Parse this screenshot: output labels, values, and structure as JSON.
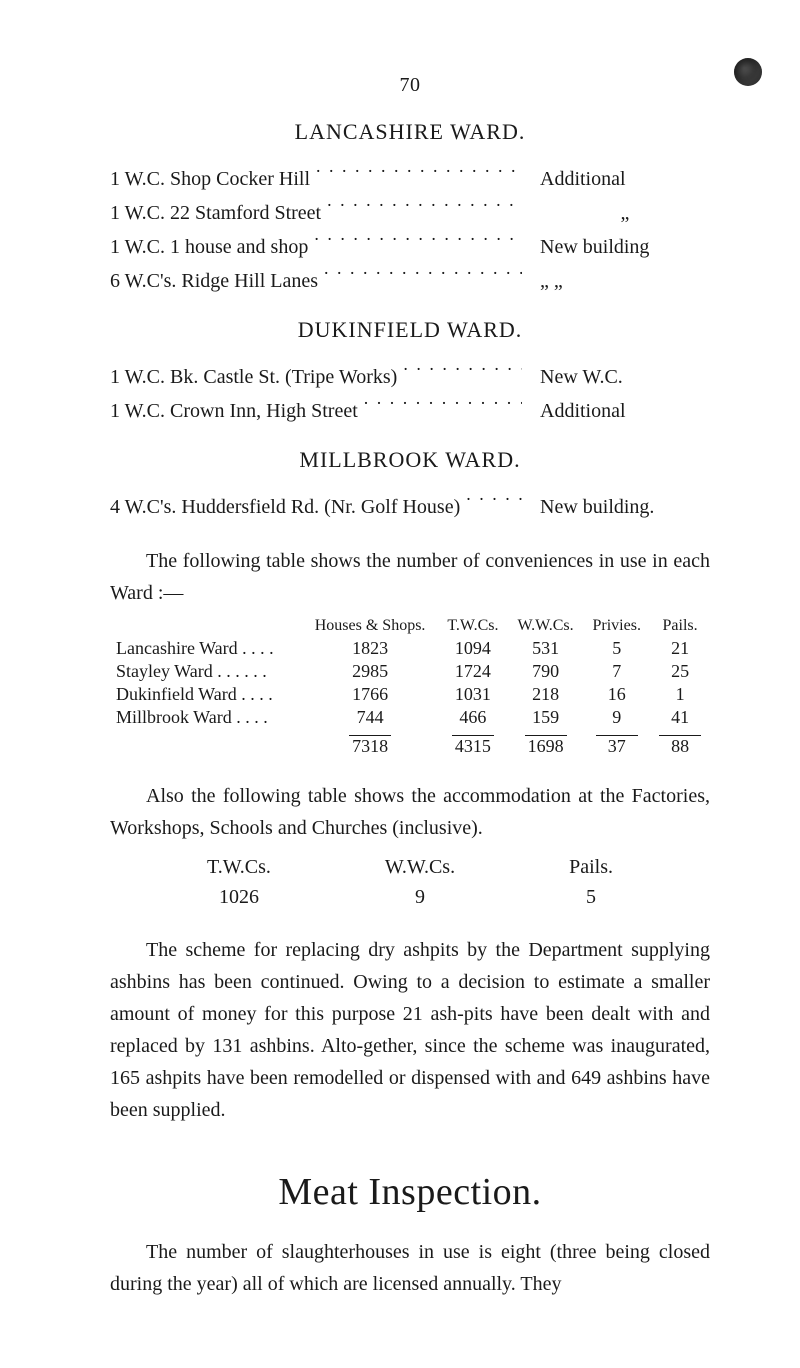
{
  "page_number": "70",
  "lancashire": {
    "heading": "LANCASHIRE WARD.",
    "rows": [
      {
        "left": "1 W.C.  Shop Cocker Hill",
        "right": "Additional"
      },
      {
        "left": "1 W.C.  22 Stamford Street",
        "right": "„"
      },
      {
        "left": "1 W.C.  1 house and shop",
        "right": "New building"
      },
      {
        "left": "6 W.C's.  Ridge Hill Lanes",
        "right": "„        „"
      }
    ]
  },
  "dukinfield": {
    "heading": "DUKINFIELD WARD.",
    "rows": [
      {
        "left": "1 W.C.  Bk. Castle St. (Tripe Works)",
        "right": "New W.C."
      },
      {
        "left": "1 W.C.  Crown Inn, High Street",
        "right": "Additional"
      }
    ]
  },
  "millbrook": {
    "heading": "MILLBROOK WARD.",
    "rows": [
      {
        "left": "4 W.C's.  Huddersfield Rd. (Nr. Golf House)",
        "right": "New building."
      }
    ]
  },
  "intro_table_para": "The following table shows the number of conveniences in use in each Ward :—",
  "stats_table": {
    "columns": [
      "",
      "Houses & Shops.",
      "T.W.Cs.",
      "W.W.Cs.",
      "Privies.",
      "Pails."
    ],
    "rows": [
      [
        "Lancashire Ward . . . .",
        "1823",
        "1094",
        "531",
        "5",
        "21"
      ],
      [
        "Stayley Ward  . . . . . .",
        "2985",
        "1724",
        "790",
        "7",
        "25"
      ],
      [
        "Dukinfield Ward . . . .",
        "1766",
        "1031",
        "218",
        "16",
        "1"
      ],
      [
        "Millbrook Ward  . . . .",
        "744",
        "466",
        "159",
        "9",
        "41"
      ]
    ],
    "totals": [
      "",
      "7318",
      "4315",
      "1698",
      "37",
      "88"
    ]
  },
  "accom_para": "Also the following table shows the accommodation at the Factories, Workshops, Schools and Churches (inclusive).",
  "twc": {
    "headers": [
      "T.W.Cs.",
      "W.W.Cs.",
      "Pails."
    ],
    "values": [
      "1026",
      "9",
      "5"
    ]
  },
  "scheme_para": "The scheme for replacing dry ashpits by the Department supplying ashbins has been continued. Owing to a decision to estimate a smaller amount of money for this purpose 21 ash-pits have been dealt with and replaced by 131 ashbins. Alto-gether, since the scheme was inaugurated, 165 ashpits have been remodelled or dispensed with and 649 ashbins have been supplied.",
  "meat_heading": "Meat Inspection.",
  "meat_para": "The number of slaughterhouses in use is eight (three being closed during the year) all of which are licensed annually. They"
}
